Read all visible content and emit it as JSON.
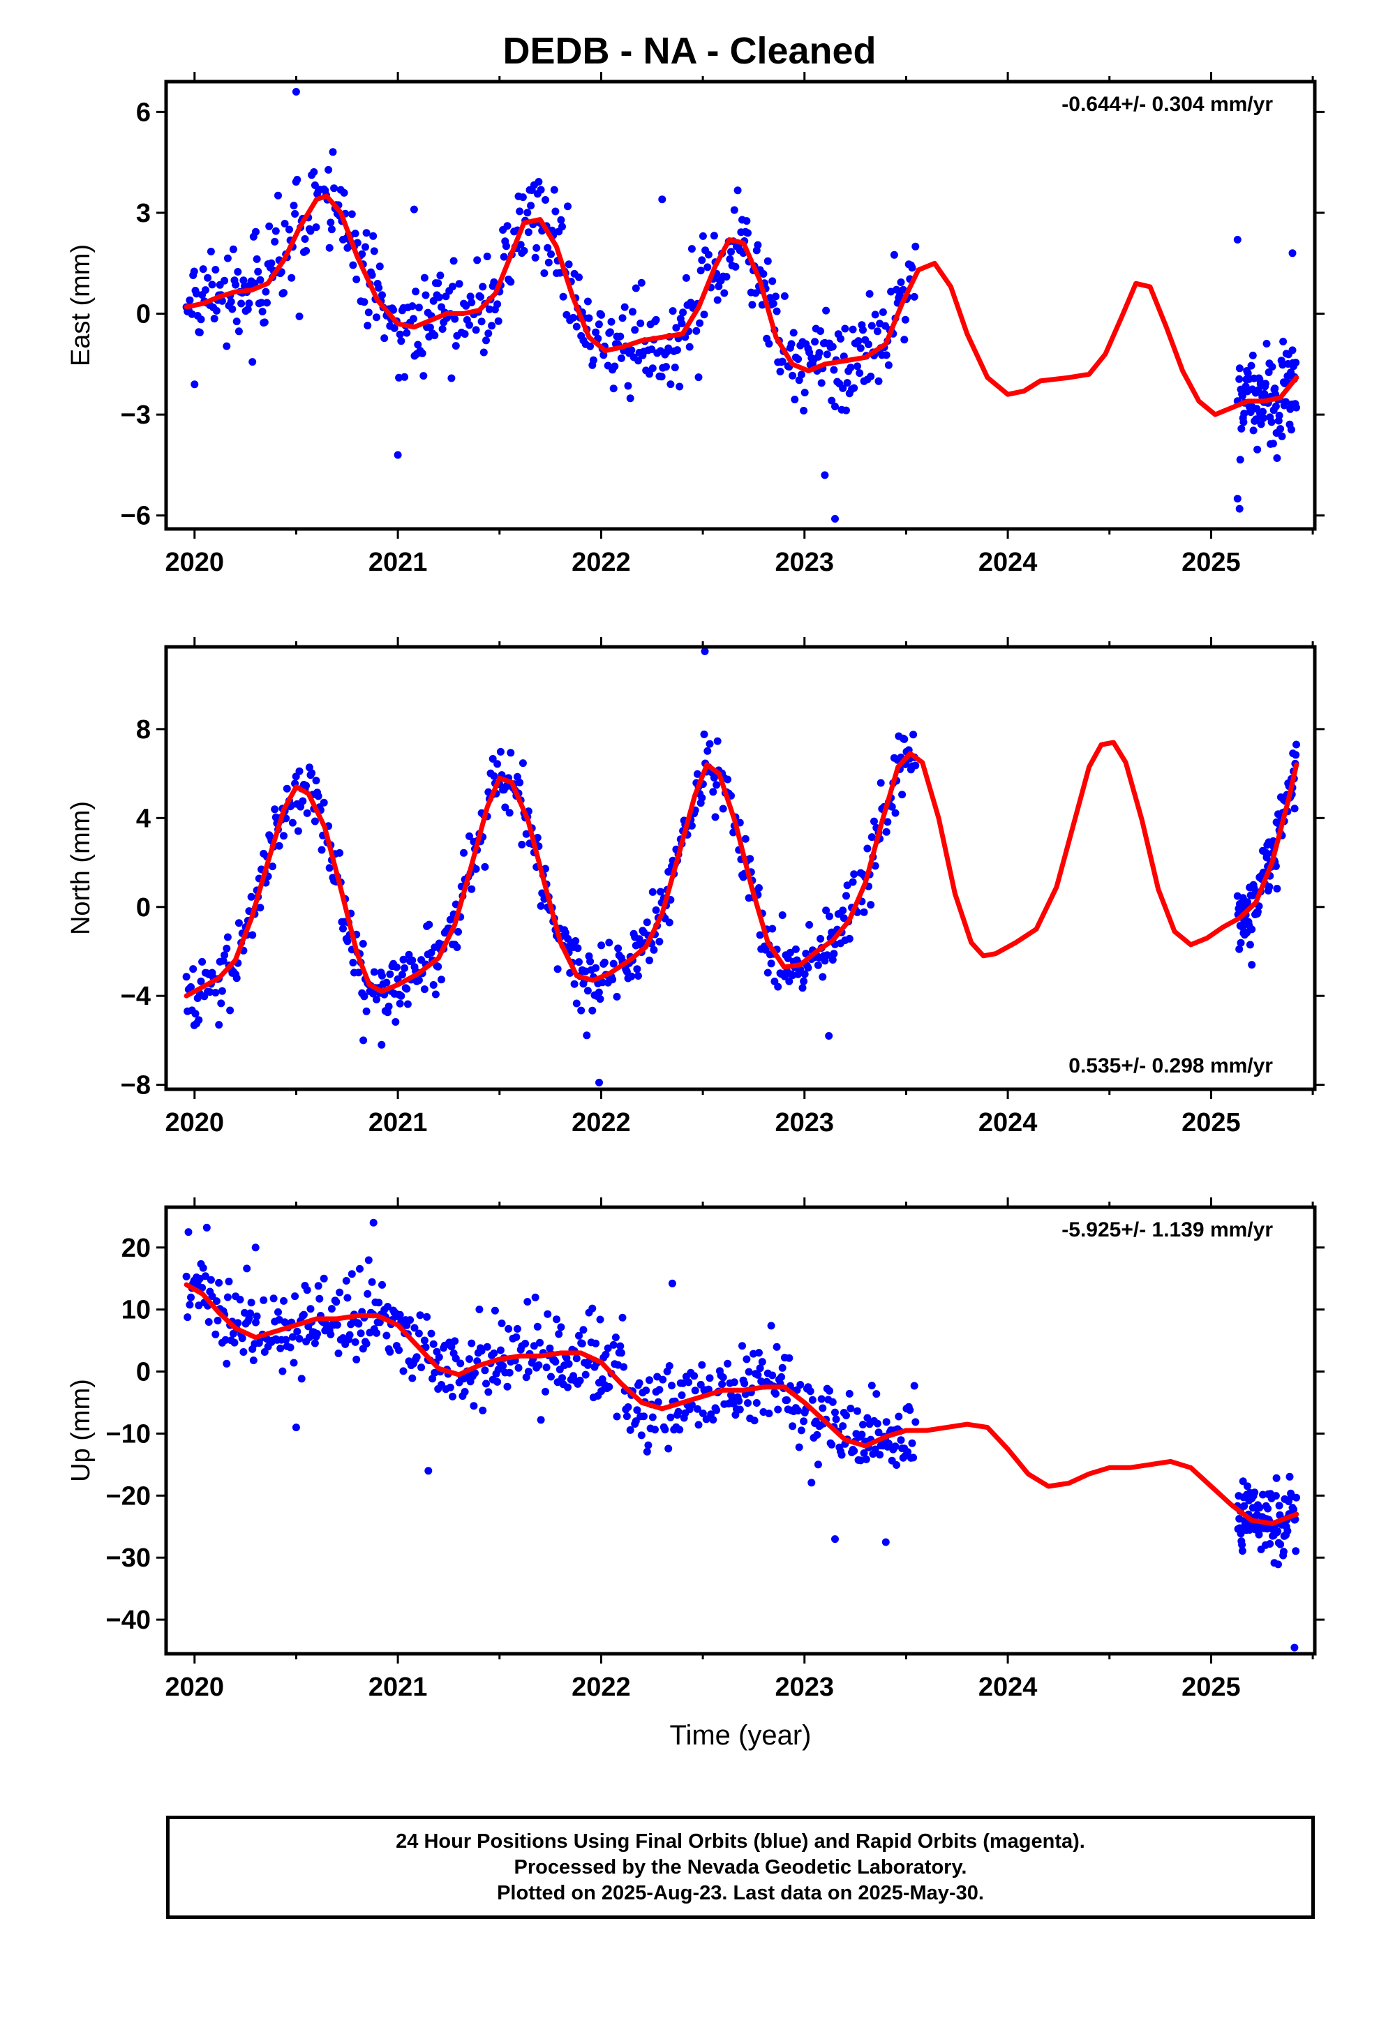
{
  "title": "DEDB  - NA - Cleaned",
  "footer": {
    "lines": [
      "24 Hour Positions Using Final Orbits (blue) and Rapid Orbits (magenta).",
      "Processed by the Nevada Geodetic Laboratory.",
      "Plotted on 2025-Aug-23. Last data on 2025-May-30."
    ]
  },
  "colors": {
    "observations": "#0000ff",
    "model": "#ff0000",
    "axes": "#000000"
  },
  "chart_data": [
    {
      "type": "scatter",
      "component": "east",
      "ylabel": "East (mm)",
      "xlabel": "",
      "rate_label": "-0.644+/- 0.304 mm/yr",
      "rate_position": "top-right",
      "xlim": [
        2019.86,
        2025.51
      ],
      "ylim": [
        -6.4,
        6.9
      ],
      "xticks": [
        2020,
        2021,
        2022,
        2023,
        2024,
        2025
      ],
      "xtick_labels": [
        "2020",
        "2021",
        "2022",
        "2023",
        "2024",
        "2025"
      ],
      "yticks": [
        -6,
        -3,
        0,
        3,
        6
      ],
      "ytick_labels": [
        "−6",
        "−3",
        "0",
        "3",
        "6"
      ],
      "grid": false,
      "series": [
        {
          "kind": "model-curve",
          "x": [
            2019.96,
            2020.04,
            2020.12,
            2020.2,
            2020.28,
            2020.36,
            2020.44,
            2020.52,
            2020.6,
            2020.65,
            2020.72,
            2020.8,
            2020.9,
            2021.0,
            2021.08,
            2021.16,
            2021.24,
            2021.32,
            2021.4,
            2021.48,
            2021.56,
            2021.62,
            2021.7,
            2021.78,
            2021.86,
            2021.94,
            2022.02,
            2022.1,
            2022.2,
            2022.3,
            2022.4,
            2022.48,
            2022.56,
            2022.63,
            2022.7,
            2022.78,
            2022.86,
            2022.94,
            2023.02,
            2023.1,
            2023.2,
            2023.3,
            2023.4,
            2023.48,
            2023.56,
            2023.64,
            2023.72,
            2023.8,
            2023.9,
            2024.0,
            2024.08,
            2024.16,
            2024.3,
            2024.4,
            2024.48,
            2024.56,
            2024.63,
            2024.7,
            2024.78,
            2024.86,
            2024.94,
            2025.02,
            2025.1,
            2025.18,
            2025.26,
            2025.34,
            2025.42
          ],
          "y": [
            0.2,
            0.3,
            0.5,
            0.65,
            0.7,
            0.9,
            1.6,
            2.6,
            3.4,
            3.5,
            3.0,
            1.7,
            0.4,
            -0.3,
            -0.4,
            -0.2,
            0.0,
            0.0,
            0.1,
            0.6,
            1.8,
            2.7,
            2.8,
            2.0,
            0.5,
            -0.7,
            -1.1,
            -1.0,
            -0.8,
            -0.7,
            -0.6,
            0.2,
            1.4,
            2.2,
            2.1,
            1.0,
            -0.7,
            -1.5,
            -1.7,
            -1.5,
            -1.4,
            -1.3,
            -0.9,
            0.3,
            1.3,
            1.5,
            0.8,
            -0.6,
            -1.9,
            -2.4,
            -2.3,
            -2.0,
            -1.9,
            -1.8,
            -1.2,
            -0.1,
            0.9,
            0.8,
            -0.4,
            -1.7,
            -2.6,
            -3.0,
            -2.8,
            -2.6,
            -2.6,
            -2.5,
            -1.9
          ]
        },
        {
          "kind": "daily-positions",
          "segments": [
            {
              "start": 2019.96,
              "end": 2023.55,
              "step": 0.0055,
              "noise_sd": 0.75
            },
            {
              "start": 2025.13,
              "end": 2025.42,
              "step": 0.0027,
              "noise_sd": 0.8
            }
          ],
          "outliers": [
            {
              "x": 2020.5,
              "y": 6.6
            },
            {
              "x": 2021.0,
              "y": -4.2
            },
            {
              "x": 2021.08,
              "y": 3.1
            },
            {
              "x": 2022.3,
              "y": 3.4
            },
            {
              "x": 2023.1,
              "y": -4.8
            },
            {
              "x": 2023.15,
              "y": -6.1
            },
            {
              "x": 2025.13,
              "y": -5.5
            },
            {
              "x": 2025.14,
              "y": -5.8
            },
            {
              "x": 2025.13,
              "y": 2.2
            },
            {
              "x": 2025.4,
              "y": 1.8
            },
            {
              "x": 2020.0,
              "y": -2.1
            }
          ]
        }
      ]
    },
    {
      "type": "scatter",
      "component": "north",
      "ylabel": "North (mm)",
      "xlabel": "",
      "rate_label": "0.535+/- 0.298 mm/yr",
      "rate_position": "bottom-right",
      "xlim": [
        2019.86,
        2025.51
      ],
      "ylim": [
        -8.2,
        11.7
      ],
      "xticks": [
        2020,
        2021,
        2022,
        2023,
        2024,
        2025
      ],
      "xtick_labels": [
        "2020",
        "2021",
        "2022",
        "2023",
        "2024",
        "2025"
      ],
      "yticks": [
        -8,
        -4,
        0,
        4,
        8
      ],
      "ytick_labels": [
        "−8",
        "−4",
        "0",
        "4",
        "8"
      ],
      "grid": false,
      "series": [
        {
          "kind": "model-curve",
          "x": [
            2019.96,
            2020.04,
            2020.12,
            2020.2,
            2020.28,
            2020.36,
            2020.44,
            2020.5,
            2020.56,
            2020.64,
            2020.72,
            2020.8,
            2020.86,
            2020.92,
            2021.0,
            2021.1,
            2021.2,
            2021.28,
            2021.36,
            2021.44,
            2021.5,
            2021.56,
            2021.64,
            2021.72,
            2021.8,
            2021.88,
            2021.96,
            2022.04,
            2022.14,
            2022.22,
            2022.3,
            2022.38,
            2022.46,
            2022.52,
            2022.58,
            2022.66,
            2022.74,
            2022.82,
            2022.9,
            2022.98,
            2023.06,
            2023.14,
            2023.22,
            2023.3,
            2023.38,
            2023.46,
            2023.52,
            2023.58,
            2023.66,
            2023.74,
            2023.82,
            2023.88,
            2023.94,
            2024.04,
            2024.14,
            2024.24,
            2024.32,
            2024.4,
            2024.46,
            2024.52,
            2024.58,
            2024.66,
            2024.74,
            2024.82,
            2024.9,
            2024.98,
            2025.06,
            2025.14,
            2025.22,
            2025.3,
            2025.38,
            2025.42
          ],
          "y": [
            -4.0,
            -3.6,
            -3.2,
            -2.4,
            -0.5,
            2.0,
            4.4,
            5.4,
            5.1,
            3.6,
            0.8,
            -2.1,
            -3.5,
            -3.8,
            -3.5,
            -3.0,
            -2.3,
            -0.8,
            1.8,
            4.5,
            5.8,
            5.6,
            3.9,
            1.1,
            -1.6,
            -3.1,
            -3.3,
            -3.0,
            -2.4,
            -1.8,
            -0.3,
            2.3,
            5.0,
            6.4,
            6.0,
            3.8,
            0.9,
            -1.6,
            -2.7,
            -2.6,
            -2.0,
            -1.5,
            -0.6,
            1.1,
            3.8,
            6.3,
            6.9,
            6.5,
            4.0,
            0.6,
            -1.6,
            -2.2,
            -2.1,
            -1.6,
            -1.0,
            0.9,
            3.6,
            6.3,
            7.3,
            7.4,
            6.5,
            3.9,
            0.8,
            -1.1,
            -1.7,
            -1.4,
            -0.9,
            -0.5,
            0.2,
            2.0,
            4.8,
            6.4
          ]
        },
        {
          "kind": "daily-positions",
          "segments": [
            {
              "start": 2019.96,
              "end": 2023.55,
              "step": 0.0055,
              "noise_sd": 0.75
            },
            {
              "start": 2025.13,
              "end": 2025.42,
              "step": 0.0027,
              "noise_sd": 0.7
            }
          ],
          "outliers": [
            {
              "x": 2022.51,
              "y": 11.5
            },
            {
              "x": 2021.99,
              "y": -7.9
            },
            {
              "x": 2020.92,
              "y": -6.2
            },
            {
              "x": 2020.83,
              "y": -6.0
            },
            {
              "x": 2023.12,
              "y": -5.8
            },
            {
              "x": 2025.2,
              "y": -2.6
            },
            {
              "x": 2020.12,
              "y": -5.3
            }
          ]
        }
      ]
    },
    {
      "type": "scatter",
      "component": "up",
      "ylabel": "Up (mm)",
      "xlabel": "Time (year)",
      "rate_label": "-5.925+/- 1.139 mm/yr",
      "rate_position": "top-right",
      "xlim": [
        2019.86,
        2025.51
      ],
      "ylim": [
        -45.5,
        26.5
      ],
      "xticks": [
        2020,
        2021,
        2022,
        2023,
        2024,
        2025
      ],
      "xtick_labels": [
        "2020",
        "2021",
        "2022",
        "2023",
        "2024",
        "2025"
      ],
      "yticks": [
        -40,
        -30,
        -20,
        -10,
        0,
        10,
        20
      ],
      "ytick_labels": [
        "−40",
        "−30",
        "−20",
        "−10",
        "0",
        "10",
        "20"
      ],
      "grid": false,
      "series": [
        {
          "kind": "model-curve",
          "x": [
            2019.96,
            2020.04,
            2020.12,
            2020.2,
            2020.3,
            2020.4,
            2020.5,
            2020.6,
            2020.7,
            2020.8,
            2020.9,
            2021.0,
            2021.1,
            2021.2,
            2021.3,
            2021.4,
            2021.5,
            2021.6,
            2021.7,
            2021.8,
            2021.9,
            2022.0,
            2022.1,
            2022.2,
            2022.3,
            2022.4,
            2022.5,
            2022.6,
            2022.7,
            2022.8,
            2022.9,
            2023.0,
            2023.1,
            2023.2,
            2023.3,
            2023.4,
            2023.5,
            2023.6,
            2023.7,
            2023.8,
            2023.9,
            2024.0,
            2024.1,
            2024.2,
            2024.3,
            2024.4,
            2024.5,
            2024.6,
            2024.7,
            2024.8,
            2024.9,
            2025.0,
            2025.1,
            2025.2,
            2025.3,
            2025.42
          ],
          "y": [
            14,
            12.5,
            9.5,
            7,
            5.5,
            6.5,
            7.5,
            8.5,
            8.5,
            9,
            9,
            7.5,
            4,
            0.5,
            -0.5,
            1,
            2,
            2.5,
            2.5,
            3,
            3,
            1.5,
            -2,
            -5,
            -6,
            -5,
            -4,
            -3,
            -3,
            -2.5,
            -2.5,
            -5,
            -8,
            -11,
            -12,
            -10.5,
            -9.5,
            -9.5,
            -9,
            -8.5,
            -9,
            -12.5,
            -16.5,
            -18.5,
            -18,
            -16.5,
            -15.5,
            -15.5,
            -15,
            -14.5,
            -15.5,
            -18.5,
            -21.5,
            -24,
            -24.5,
            -23
          ]
        },
        {
          "kind": "daily-positions",
          "segments": [
            {
              "start": 2019.96,
              "end": 2023.55,
              "step": 0.0055,
              "noise_sd": 3.4
            },
            {
              "start": 2025.13,
              "end": 2025.42,
              "step": 0.0027,
              "noise_sd": 3.2
            }
          ],
          "outliers": [
            {
              "x": 2020.88,
              "y": 24
            },
            {
              "x": 2020.06,
              "y": 23.2
            },
            {
              "x": 2020.3,
              "y": 20
            },
            {
              "x": 2021.15,
              "y": -16
            },
            {
              "x": 2022.35,
              "y": 14.2
            },
            {
              "x": 2023.15,
              "y": -27
            },
            {
              "x": 2023.4,
              "y": -27.5
            },
            {
              "x": 2025.41,
              "y": -44.5
            },
            {
              "x": 2020.5,
              "y": -9
            },
            {
              "x": 2019.97,
              "y": 22.5
            }
          ]
        }
      ]
    }
  ]
}
